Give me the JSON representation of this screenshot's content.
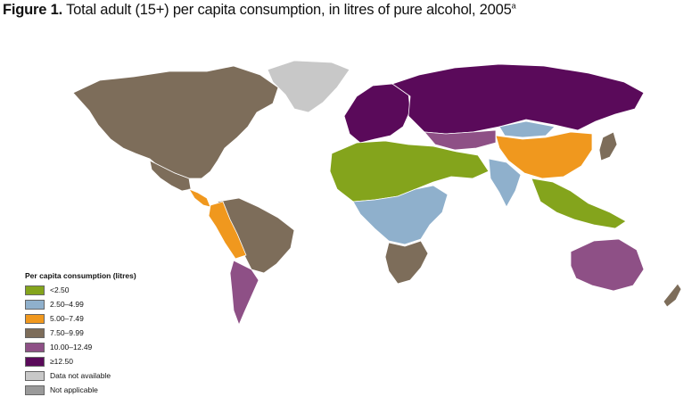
{
  "title": {
    "figure": "Figure 1.",
    "text": "Total adult (15+) per capita consumption, in litres of pure alcohol, 2005",
    "superscript": "a"
  },
  "legend": {
    "title": "Per capita consumption (litres)",
    "items": [
      {
        "label": "<2.50",
        "color": "#84a41c"
      },
      {
        "label": "2.50–4.99",
        "color": "#8fb0cc"
      },
      {
        "label": "5.00–7.49",
        "color": "#f0981e"
      },
      {
        "label": "7.50–9.99",
        "color": "#7d6d5a"
      },
      {
        "label": "10.00–12.49",
        "color": "#8e5086"
      },
      {
        "label": "≥12.50",
        "color": "#5a0a5a"
      },
      {
        "label": "Data not available",
        "color": "#c8c8c8"
      },
      {
        "label": "Not applicable",
        "color": "#9a9a9a"
      }
    ]
  },
  "regions": [
    {
      "name": "north-america",
      "category": "7.50–9.99"
    },
    {
      "name": "greenland",
      "category": "Data not available"
    },
    {
      "name": "mexico",
      "category": "7.50–9.99"
    },
    {
      "name": "central-america",
      "category": "5.00–7.49"
    },
    {
      "name": "brazil",
      "category": "7.50–9.99"
    },
    {
      "name": "andes",
      "category": "5.00–7.49"
    },
    {
      "name": "argentina",
      "category": "10.00–12.49"
    },
    {
      "name": "europe",
      "category": "≥12.50"
    },
    {
      "name": "russia",
      "category": "≥12.50"
    },
    {
      "name": "north-africa-middle-east",
      "category": "<2.50"
    },
    {
      "name": "africa-central-east",
      "category": "2.50–4.99"
    },
    {
      "name": "southern-africa",
      "category": "7.50–9.99"
    },
    {
      "name": "central-asia",
      "category": "10.00–12.49"
    },
    {
      "name": "china",
      "category": "5.00–7.49"
    },
    {
      "name": "mongolia",
      "category": "2.50–4.99"
    },
    {
      "name": "india",
      "category": "2.50–4.99"
    },
    {
      "name": "southeast-asia",
      "category": "<2.50"
    },
    {
      "name": "japan",
      "category": "7.50–9.99"
    },
    {
      "name": "australia",
      "category": "10.00–12.49"
    },
    {
      "name": "new-zealand",
      "category": "7.50–9.99"
    }
  ]
}
